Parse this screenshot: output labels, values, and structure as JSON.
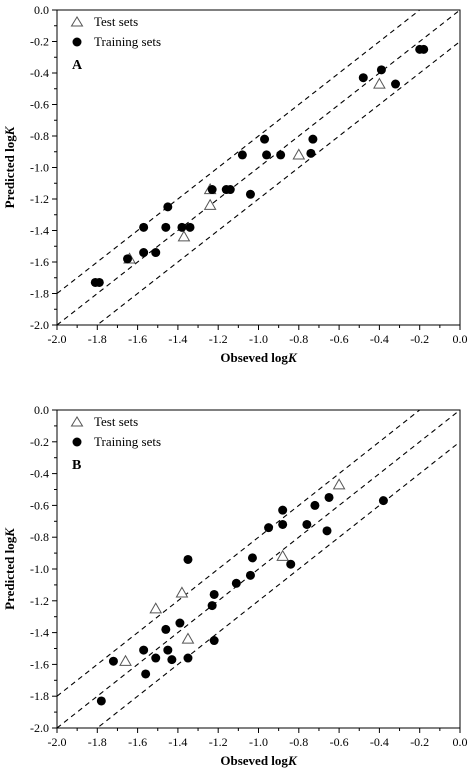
{
  "chart_data": [
    {
      "type": "scatter",
      "panel_label": "A",
      "xlabel": "Obseved log",
      "xlabel_italic": "K",
      "ylabel": "Predicted log",
      "ylabel_italic": "K",
      "xlim": [
        -2.0,
        0.0
      ],
      "ylim": [
        -2.0,
        0.0
      ],
      "x_ticks": [
        "-2.0",
        "-1.8",
        "-1.6",
        "-1.4",
        "-1.2",
        "-1.0",
        "-0.8",
        "-0.6",
        "-0.4",
        "-0.2",
        "0.0"
      ],
      "y_ticks": [
        "0.0",
        "-0.2",
        "-0.4",
        "-0.6",
        "-0.8",
        "-1.0",
        "-1.2",
        "-1.4",
        "-1.6",
        "-1.8",
        "-2.0"
      ],
      "reference_lines": [
        {
          "slope": 1,
          "intercept": 0.2,
          "style": "dashed"
        },
        {
          "slope": 1,
          "intercept": 0.0,
          "style": "dashed"
        },
        {
          "slope": 1,
          "intercept": -0.2,
          "style": "dashed"
        }
      ],
      "legend_position": "top-left",
      "series": [
        {
          "name": "Test sets",
          "marker": "open-triangle",
          "points": [
            [
              -1.64,
              -1.58
            ],
            [
              -1.37,
              -1.44
            ],
            [
              -1.24,
              -1.24
            ],
            [
              -1.24,
              -1.14
            ],
            [
              -0.8,
              -0.92
            ],
            [
              -0.4,
              -0.47
            ]
          ]
        },
        {
          "name": "Training sets",
          "marker": "filled-circle",
          "points": [
            [
              -1.81,
              -1.73
            ],
            [
              -1.79,
              -1.73
            ],
            [
              -1.65,
              -1.58
            ],
            [
              -1.57,
              -1.54
            ],
            [
              -1.57,
              -1.38
            ],
            [
              -1.51,
              -1.54
            ],
            [
              -1.46,
              -1.38
            ],
            [
              -1.45,
              -1.25
            ],
            [
              -1.38,
              -1.38
            ],
            [
              -1.34,
              -1.38
            ],
            [
              -1.23,
              -1.14
            ],
            [
              -1.16,
              -1.14
            ],
            [
              -1.14,
              -1.14
            ],
            [
              -1.04,
              -1.17
            ],
            [
              -0.97,
              -0.82
            ],
            [
              -0.96,
              -0.92
            ],
            [
              -0.89,
              -0.92
            ],
            [
              -0.74,
              -0.91
            ],
            [
              -0.73,
              -0.82
            ],
            [
              -0.48,
              -0.43
            ],
            [
              -0.39,
              -0.38
            ],
            [
              -0.32,
              -0.47
            ],
            [
              -0.2,
              -0.25
            ],
            [
              -0.18,
              -0.25
            ],
            [
              -1.08,
              -0.92
            ]
          ]
        }
      ]
    },
    {
      "type": "scatter",
      "panel_label": "B",
      "xlabel": "Obseved log",
      "xlabel_italic": "K",
      "ylabel": "Predicted log",
      "ylabel_italic": "K",
      "xlim": [
        -2.0,
        0.0
      ],
      "ylim": [
        -2.0,
        0.0
      ],
      "x_ticks": [
        "-2.0",
        "-1.8",
        "-1.6",
        "-1.4",
        "-1.2",
        "-1.0",
        "-0.8",
        "-0.6",
        "-0.4",
        "-0.2",
        "0.0"
      ],
      "y_ticks": [
        "0.0",
        "-0.2",
        "-0.4",
        "-0.6",
        "-0.8",
        "-1.0",
        "-1.2",
        "-1.4",
        "-1.6",
        "-1.8",
        "-2.0"
      ],
      "reference_lines": [
        {
          "slope": 1,
          "intercept": 0.2,
          "style": "dashed"
        },
        {
          "slope": 1,
          "intercept": 0.0,
          "style": "dashed"
        },
        {
          "slope": 1,
          "intercept": -0.2,
          "style": "dashed"
        }
      ],
      "legend_position": "top-left",
      "series": [
        {
          "name": "Test sets",
          "marker": "open-triangle",
          "points": [
            [
              -1.66,
              -1.58
            ],
            [
              -1.51,
              -1.25
            ],
            [
              -1.38,
              -1.15
            ],
            [
              -1.35,
              -1.44
            ],
            [
              -0.88,
              -0.92
            ],
            [
              -0.6,
              -0.47
            ]
          ]
        },
        {
          "name": "Training sets",
          "marker": "filled-circle",
          "points": [
            [
              -1.78,
              -1.83
            ],
            [
              -1.72,
              -1.58
            ],
            [
              -1.57,
              -1.51
            ],
            [
              -1.56,
              -1.66
            ],
            [
              -1.51,
              -1.56
            ],
            [
              -1.46,
              -1.38
            ],
            [
              -1.45,
              -1.51
            ],
            [
              -1.43,
              -1.57
            ],
            [
              -1.39,
              -1.34
            ],
            [
              -1.35,
              -1.56
            ],
            [
              -1.35,
              -0.94
            ],
            [
              -1.23,
              -1.23
            ],
            [
              -1.22,
              -1.16
            ],
            [
              -1.22,
              -1.45
            ],
            [
              -1.11,
              -1.09
            ],
            [
              -1.04,
              -1.04
            ],
            [
              -1.03,
              -0.93
            ],
            [
              -0.95,
              -0.74
            ],
            [
              -0.88,
              -0.72
            ],
            [
              -0.88,
              -0.63
            ],
            [
              -0.84,
              -0.97
            ],
            [
              -0.76,
              -0.72
            ],
            [
              -0.72,
              -0.6
            ],
            [
              -0.66,
              -0.76
            ],
            [
              -0.65,
              -0.55
            ],
            [
              -0.38,
              -0.57
            ]
          ]
        }
      ]
    }
  ]
}
